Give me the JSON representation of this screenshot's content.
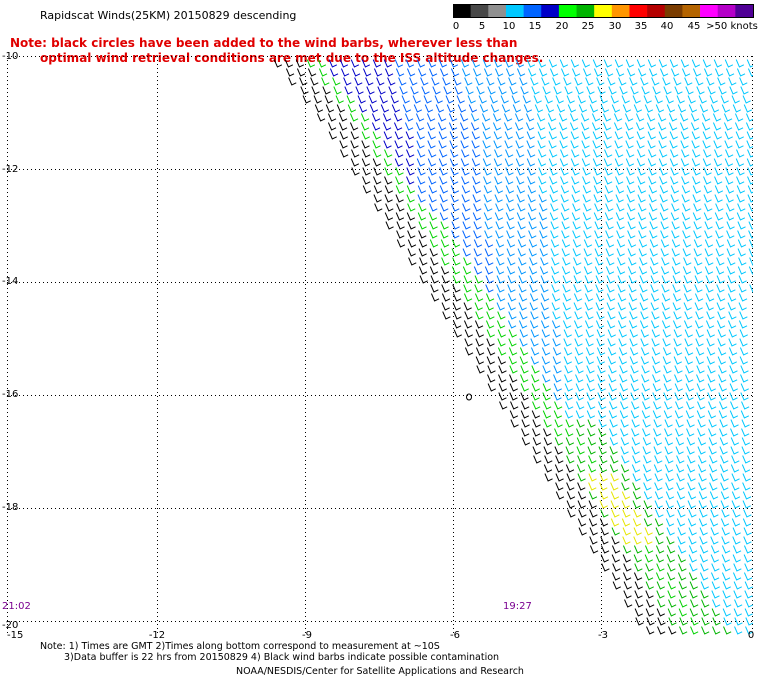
{
  "header": {
    "title": "Rapidscat Winds(25KM) 20150829 descending",
    "note_line1": "Note: black circles have been added to the wind barbs, wherever less than",
    "note_line2": "optimal wind retrieval conditions are met due to the ISS altitude changes."
  },
  "legend": {
    "labels": [
      "0",
      "5",
      "10",
      "15",
      "20",
      "25",
      "30",
      "35",
      "40",
      "45",
      ">50 knots"
    ],
    "colors": [
      "#000000",
      "#484848",
      "#909090",
      "#00c8ff",
      "#0064ff",
      "#0000c8",
      "#00ff00",
      "#00b400",
      "#ffff00",
      "#ff9600",
      "#ff0000",
      "#b40000",
      "#7a3c00",
      "#b46400",
      "#ff00ff",
      "#b400c8",
      "#500096"
    ]
  },
  "axes": {
    "x_ticks": [
      "-15",
      "-12",
      "-9",
      "-6",
      "-3",
      "0"
    ],
    "y_ticks": [
      "-10",
      "-12",
      "-14",
      "-16",
      "-18",
      "-20"
    ]
  },
  "times": {
    "left": "21:02",
    "right": "19:27"
  },
  "footer": {
    "note_line1": "Note: 1) Times are GMT 2)Times along bottom correspond to measurement at ~10S",
    "note_line2": "3)Data buffer is 22 hrs from 20150829 4) Black wind barbs indicate possible contamination",
    "credit": "NOAA/NESDIS/Center for Satellite Applications and Research"
  },
  "colors": {
    "note": "#e00000",
    "time": "#7a0090",
    "grid": "#000000"
  }
}
